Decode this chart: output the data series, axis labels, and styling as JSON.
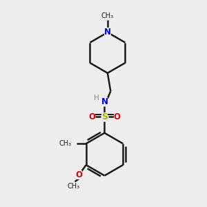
{
  "bg_color": "#eeeeee",
  "bond_color": "#1a1a1a",
  "N_color": "#0000ee",
  "O_color": "#dd0000",
  "S_color": "#aaaa00",
  "H_color": "#888888",
  "line_width": 1.8,
  "figsize": [
    3.0,
    3.0
  ],
  "dpi": 100,
  "xlim": [
    0,
    10
  ],
  "ylim": [
    0,
    10
  ]
}
